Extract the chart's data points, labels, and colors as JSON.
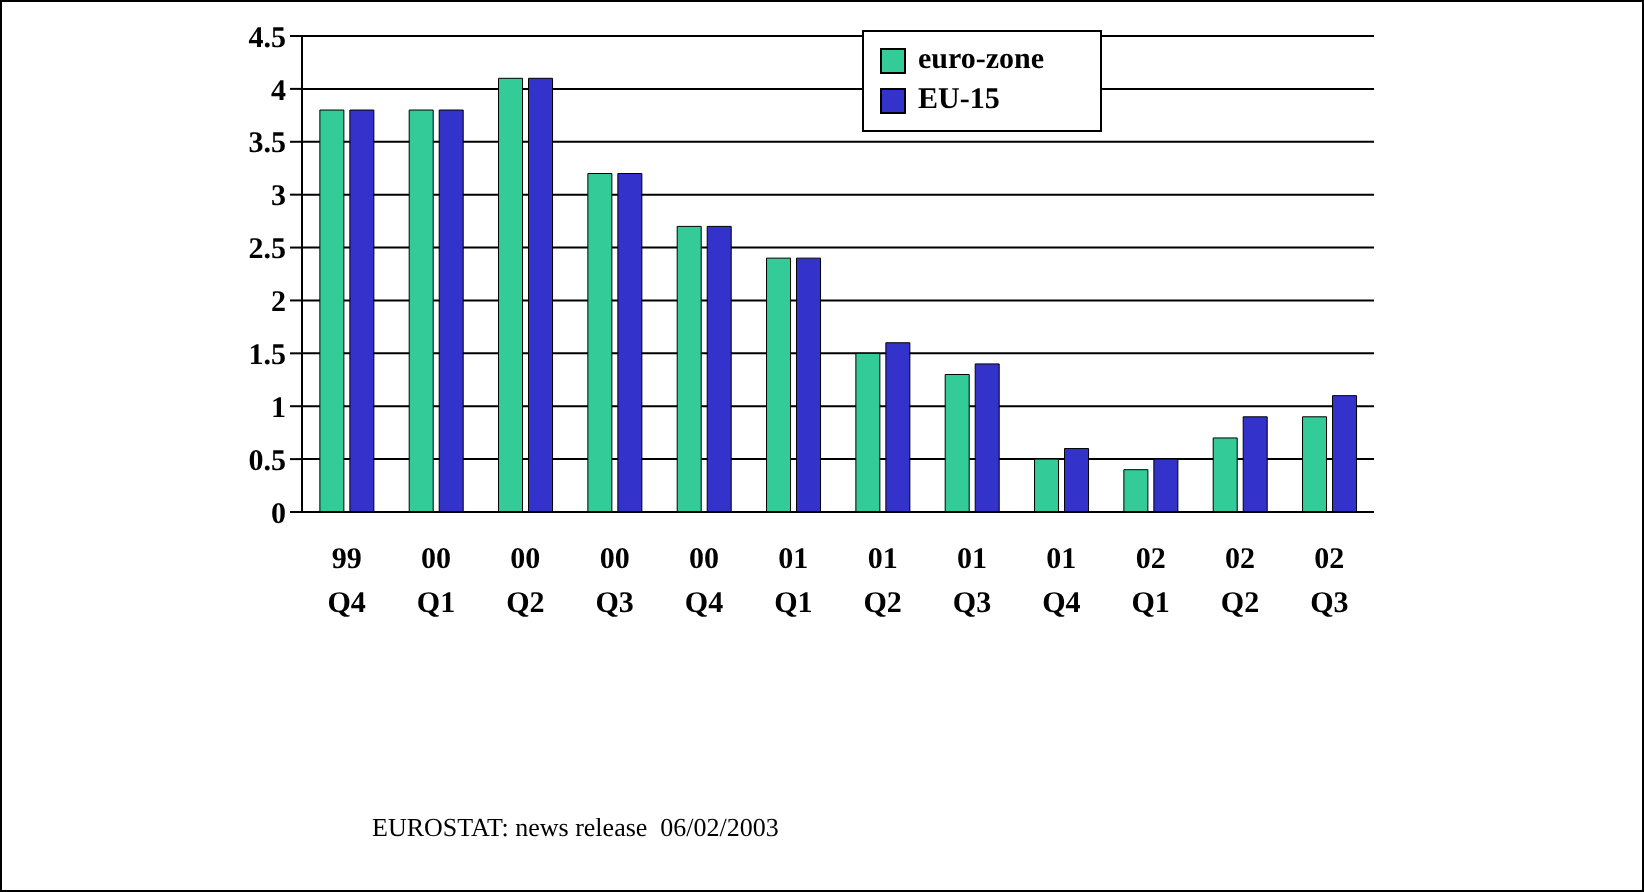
{
  "chart_data": {
    "type": "bar",
    "categories": [
      "99 Q4",
      "00 Q1",
      "00 Q2",
      "00 Q3",
      "00 Q4",
      "01 Q1",
      "01 Q2",
      "01 Q3",
      "01 Q4",
      "02 Q1",
      "02 Q2",
      "02 Q3"
    ],
    "series": [
      {
        "name": "euro-zone",
        "color": "#33cc99",
        "values": [
          3.8,
          3.8,
          4.1,
          3.2,
          2.7,
          2.4,
          1.5,
          1.3,
          0.5,
          0.4,
          0.7,
          0.9
        ]
      },
      {
        "name": "EU-15",
        "color": "#3333cc",
        "values": [
          3.8,
          3.8,
          4.1,
          3.2,
          2.7,
          2.4,
          1.6,
          1.4,
          0.6,
          0.5,
          0.9,
          1.1
        ]
      }
    ],
    "ylim": [
      0,
      4.5
    ],
    "yticks": [
      0,
      0.5,
      1,
      1.5,
      2,
      2.5,
      3,
      3.5,
      4,
      4.5
    ],
    "grid": "y",
    "legend": "top right",
    "annotations": [
      "EUROSTAT: news release  06/02/2003"
    ]
  }
}
